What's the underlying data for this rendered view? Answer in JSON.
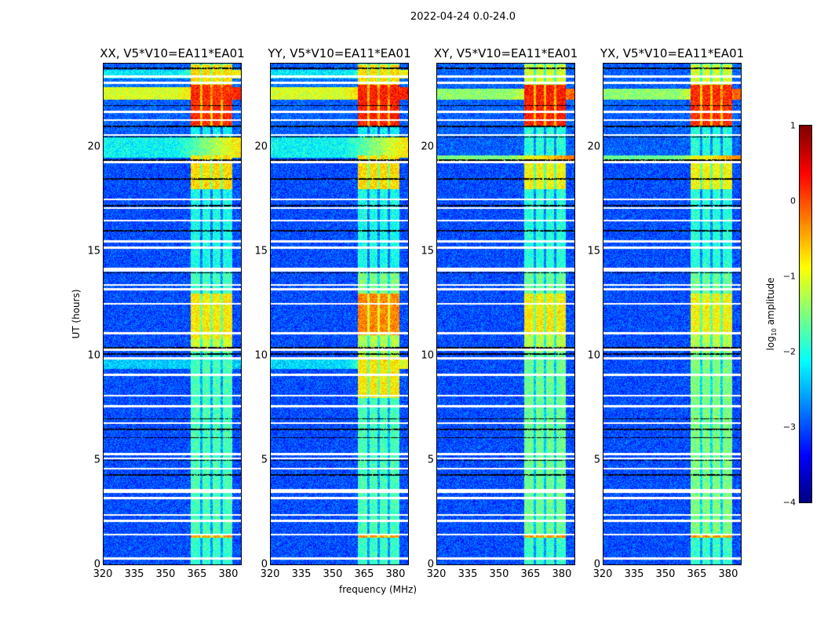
{
  "chart_data": {
    "type": "heatmap",
    "suptitle": "2022-04-24 0.0-24.0",
    "xlabel": "frequency (MHz)",
    "ylabel": "UT (hours)",
    "xlim": [
      320,
      386.4
    ],
    "ylim": [
      0,
      24
    ],
    "xticks": [
      "320",
      "335",
      "350",
      "365",
      "380"
    ],
    "xtick_values": [
      320,
      335,
      350,
      365,
      380
    ],
    "yticks": [
      "0",
      "5",
      "10",
      "15",
      "20"
    ],
    "ytick_values": [
      0,
      5,
      10,
      15,
      20
    ],
    "colorbar": {
      "label": "log10 amplitude",
      "label_main": "log",
      "label_sub": "10",
      "label_tail": " amplitude",
      "colormap": "jet",
      "range": [
        -4,
        1
      ],
      "ticks": [
        "1",
        "0",
        "−1",
        "−2",
        "−3",
        "−4"
      ],
      "tick_values": [
        1,
        0,
        -1,
        -2,
        -3,
        -4
      ]
    },
    "signal_band_mhz": [
      362,
      382
    ],
    "signal_subbands_mhz": [
      [
        362,
        366.5
      ],
      [
        367.5,
        371.5
      ],
      [
        372.5,
        376.5
      ],
      [
        377.5,
        382
      ]
    ],
    "flagged_hours_white": [
      0.3,
      1.45,
      2.1,
      2.4,
      3.2,
      3.5,
      3.6,
      4.6,
      5.1,
      5.3,
      6.8,
      7.6,
      8.1,
      9.1,
      9.9,
      10.3,
      11.1,
      12.5,
      13.2,
      13.4,
      14.1,
      14.2,
      15.2,
      15.5,
      16.5,
      17.1,
      17.5,
      19.3,
      20.6,
      21.3,
      21.7,
      23.1,
      23.4
    ],
    "flagged_hours_black": [
      4.3,
      5.0,
      6.1,
      6.5,
      7.0,
      10.1,
      10.4,
      14.0,
      16.0,
      17.2,
      18.5,
      19.4,
      20.5,
      21.0,
      22.0,
      23.8
    ],
    "panels": [
      {
        "title": "XX, V5*V10=EA11*EA01",
        "background": [
          [
            0,
            19.5,
            -3.2
          ],
          [
            19.5,
            20.5,
            -2.2
          ],
          [
            20.5,
            22.3,
            -3.1
          ],
          [
            22.3,
            22.9,
            -1.0
          ],
          [
            22.9,
            23.3,
            -3.0
          ],
          [
            23.3,
            23.7,
            -2.3
          ],
          [
            23.7,
            24,
            -3.1
          ],
          [
            9.4,
            9.9,
            -2.5
          ]
        ],
        "signal": [
          [
            0,
            1.3,
            -1.9
          ],
          [
            1.3,
            1.5,
            -0.2
          ],
          [
            1.5,
            10.2,
            -1.8
          ],
          [
            10.2,
            10.8,
            -1.1
          ],
          [
            10.8,
            13.0,
            -0.7
          ],
          [
            13.0,
            14.0,
            -1.8
          ],
          [
            14.0,
            18.0,
            -2.1
          ],
          [
            18.0,
            19.6,
            -0.6
          ],
          [
            19.6,
            21.0,
            -2.2
          ],
          [
            21.0,
            23.0,
            0.4
          ],
          [
            23.0,
            24,
            -0.6
          ]
        ]
      },
      {
        "title": "YY, V5*V10=EA11*EA01",
        "background": [
          [
            0,
            19.5,
            -3.2
          ],
          [
            19.5,
            20.5,
            -2.2
          ],
          [
            20.5,
            22.3,
            -3.1
          ],
          [
            22.3,
            22.9,
            -1.0
          ],
          [
            22.9,
            23.3,
            -3.0
          ],
          [
            23.3,
            23.7,
            -2.3
          ],
          [
            23.7,
            24,
            -3.1
          ],
          [
            9.4,
            9.9,
            -2.4
          ]
        ],
        "signal": [
          [
            0,
            1.3,
            -1.9
          ],
          [
            1.3,
            1.5,
            -0.2
          ],
          [
            1.5,
            8.0,
            -1.8
          ],
          [
            8.0,
            10.0,
            -0.7
          ],
          [
            10.0,
            11.0,
            -1.2
          ],
          [
            11.0,
            13.0,
            -0.1
          ],
          [
            13.0,
            14.0,
            -1.5
          ],
          [
            14.0,
            18.0,
            -2.1
          ],
          [
            18.0,
            19.6,
            -0.6
          ],
          [
            19.6,
            21.0,
            -2.2
          ],
          [
            21.0,
            23.0,
            0.5
          ],
          [
            23.0,
            24,
            -0.6
          ]
        ]
      },
      {
        "title": "XY, V5*V10=EA11*EA01",
        "background": [
          [
            0,
            19.3,
            -3.2
          ],
          [
            19.3,
            19.6,
            -1.5
          ],
          [
            19.6,
            22.3,
            -3.1
          ],
          [
            22.3,
            22.8,
            -1.4
          ],
          [
            22.8,
            24,
            -3.1
          ]
        ],
        "signal": [
          [
            0,
            1.3,
            -1.9
          ],
          [
            1.3,
            1.5,
            -0.2
          ],
          [
            1.5,
            10.2,
            -1.6
          ],
          [
            10.2,
            11.0,
            -1.2
          ],
          [
            11.0,
            13.0,
            -0.7
          ],
          [
            13.0,
            14.0,
            -1.6
          ],
          [
            14.0,
            18.0,
            -2.0
          ],
          [
            18.0,
            19.6,
            -0.8
          ],
          [
            19.6,
            21.0,
            -2.0
          ],
          [
            21.0,
            23.0,
            0.5
          ],
          [
            23.0,
            24,
            -1.0
          ]
        ]
      },
      {
        "title": "YX, V5*V10=EA11*EA01",
        "background": [
          [
            0,
            19.3,
            -3.2
          ],
          [
            19.3,
            19.6,
            -1.6
          ],
          [
            19.6,
            22.3,
            -3.1
          ],
          [
            22.3,
            22.8,
            -1.4
          ],
          [
            22.8,
            24,
            -3.1
          ]
        ],
        "signal": [
          [
            0,
            1.3,
            -1.9
          ],
          [
            1.3,
            1.5,
            -0.2
          ],
          [
            1.5,
            10.2,
            -1.5
          ],
          [
            10.2,
            11.0,
            -1.2
          ],
          [
            11.0,
            13.0,
            -0.8
          ],
          [
            13.0,
            14.0,
            -1.6
          ],
          [
            14.0,
            18.0,
            -2.0
          ],
          [
            18.0,
            19.6,
            -0.8
          ],
          [
            19.6,
            21.0,
            -2.0
          ],
          [
            21.0,
            23.0,
            0.4
          ],
          [
            23.0,
            24,
            -1.0
          ]
        ]
      }
    ]
  }
}
